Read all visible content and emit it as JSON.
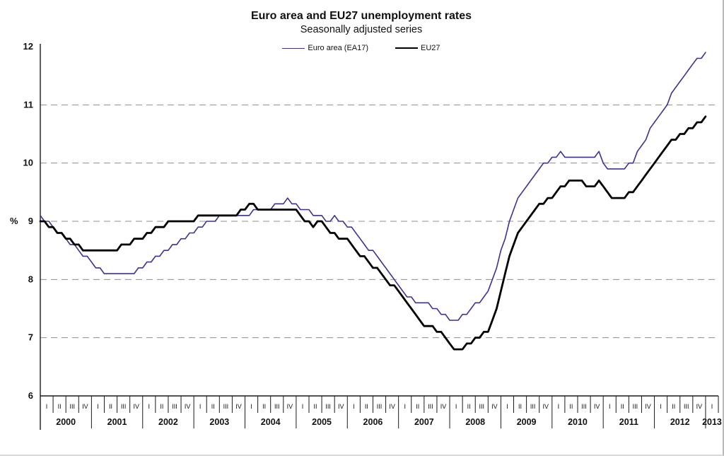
{
  "title": "Euro area and EU27 unemployment rates",
  "subtitle": "Seasonally adjusted series",
  "ylabel": "%",
  "legend": [
    {
      "label": "Euro area (EA17)",
      "color": "#3f3190",
      "stroke_width": 1.6
    },
    {
      "label": "EU27",
      "color": "#000000",
      "stroke_width": 2.8
    }
  ],
  "chart_data": {
    "type": "line",
    "title": "Euro area and EU27 unemployment rates",
    "subtitle": "Seasonally adjusted series",
    "x_unit": "month",
    "x_start": "2000-01",
    "x_end": "2013-01",
    "years": [
      2000,
      2001,
      2002,
      2003,
      2004,
      2005,
      2006,
      2007,
      2008,
      2009,
      2010,
      2011,
      2012,
      2013
    ],
    "quarter_labels": [
      "I",
      "II",
      "III",
      "IV"
    ],
    "ylabel": "%",
    "ylim": [
      6,
      12
    ],
    "yticks": [
      6,
      7,
      8,
      9,
      10,
      11,
      12
    ],
    "gridlines": [
      7,
      8,
      9,
      10,
      11
    ],
    "grid_style": "dashed",
    "legend_position": "top-center",
    "series": [
      {
        "name": "Euro area (EA17)",
        "color": "#3f3190",
        "stroke_width": 1.6,
        "values": [
          9.1,
          9.0,
          9.0,
          8.9,
          8.8,
          8.8,
          8.7,
          8.6,
          8.6,
          8.5,
          8.4,
          8.4,
          8.3,
          8.2,
          8.2,
          8.1,
          8.1,
          8.1,
          8.1,
          8.1,
          8.1,
          8.1,
          8.1,
          8.2,
          8.2,
          8.3,
          8.3,
          8.4,
          8.4,
          8.5,
          8.5,
          8.6,
          8.6,
          8.7,
          8.7,
          8.8,
          8.8,
          8.9,
          8.9,
          9.0,
          9.0,
          9.0,
          9.1,
          9.1,
          9.1,
          9.1,
          9.1,
          9.1,
          9.1,
          9.1,
          9.2,
          9.2,
          9.2,
          9.2,
          9.2,
          9.3,
          9.3,
          9.3,
          9.4,
          9.3,
          9.3,
          9.2,
          9.2,
          9.2,
          9.1,
          9.1,
          9.1,
          9.0,
          9.0,
          9.1,
          9.0,
          9.0,
          8.9,
          8.9,
          8.8,
          8.7,
          8.6,
          8.5,
          8.5,
          8.4,
          8.3,
          8.2,
          8.1,
          8.0,
          7.9,
          7.8,
          7.7,
          7.7,
          7.6,
          7.6,
          7.6,
          7.6,
          7.5,
          7.5,
          7.4,
          7.4,
          7.3,
          7.3,
          7.3,
          7.4,
          7.4,
          7.5,
          7.6,
          7.6,
          7.7,
          7.8,
          8.0,
          8.2,
          8.5,
          8.7,
          9.0,
          9.2,
          9.4,
          9.5,
          9.6,
          9.7,
          9.8,
          9.9,
          10.0,
          10.0,
          10.1,
          10.1,
          10.2,
          10.1,
          10.1,
          10.1,
          10.1,
          10.1,
          10.1,
          10.1,
          10.1,
          10.2,
          10.0,
          9.9,
          9.9,
          9.9,
          9.9,
          9.9,
          10.0,
          10.0,
          10.2,
          10.3,
          10.4,
          10.6,
          10.7,
          10.8,
          10.9,
          11.0,
          11.2,
          11.3,
          11.4,
          11.5,
          11.6,
          11.7,
          11.8,
          11.8,
          11.9
        ]
      },
      {
        "name": "EU27",
        "color": "#000000",
        "stroke_width": 2.8,
        "values": [
          9.0,
          9.0,
          8.9,
          8.9,
          8.8,
          8.8,
          8.7,
          8.7,
          8.6,
          8.6,
          8.5,
          8.5,
          8.5,
          8.5,
          8.5,
          8.5,
          8.5,
          8.5,
          8.5,
          8.6,
          8.6,
          8.6,
          8.7,
          8.7,
          8.7,
          8.8,
          8.8,
          8.9,
          8.9,
          8.9,
          9.0,
          9.0,
          9.0,
          9.0,
          9.0,
          9.0,
          9.0,
          9.1,
          9.1,
          9.1,
          9.1,
          9.1,
          9.1,
          9.1,
          9.1,
          9.1,
          9.1,
          9.2,
          9.2,
          9.3,
          9.3,
          9.2,
          9.2,
          9.2,
          9.2,
          9.2,
          9.2,
          9.2,
          9.2,
          9.2,
          9.2,
          9.1,
          9.0,
          9.0,
          8.9,
          9.0,
          9.0,
          8.9,
          8.8,
          8.8,
          8.7,
          8.7,
          8.7,
          8.6,
          8.5,
          8.4,
          8.4,
          8.3,
          8.2,
          8.2,
          8.1,
          8.0,
          7.9,
          7.9,
          7.8,
          7.7,
          7.6,
          7.5,
          7.4,
          7.3,
          7.2,
          7.2,
          7.2,
          7.1,
          7.1,
          7.0,
          6.9,
          6.8,
          6.8,
          6.8,
          6.9,
          6.9,
          7.0,
          7.0,
          7.1,
          7.1,
          7.3,
          7.5,
          7.8,
          8.1,
          8.4,
          8.6,
          8.8,
          8.9,
          9.0,
          9.1,
          9.2,
          9.3,
          9.3,
          9.4,
          9.4,
          9.5,
          9.6,
          9.6,
          9.7,
          9.7,
          9.7,
          9.7,
          9.6,
          9.6,
          9.6,
          9.7,
          9.6,
          9.5,
          9.4,
          9.4,
          9.4,
          9.4,
          9.5,
          9.5,
          9.6,
          9.7,
          9.8,
          9.9,
          10.0,
          10.1,
          10.2,
          10.3,
          10.4,
          10.4,
          10.5,
          10.5,
          10.6,
          10.6,
          10.7,
          10.7,
          10.8
        ]
      }
    ]
  }
}
